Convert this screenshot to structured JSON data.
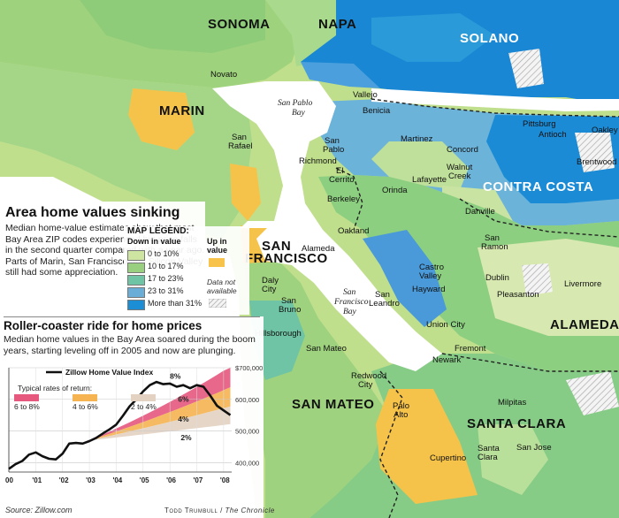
{
  "counties": {
    "sonoma": "SONOMA",
    "napa": "NAPA",
    "solano": "SOLANO",
    "marin": "MARIN",
    "contra_costa": "CONTRA COSTA",
    "san_francisco_line1": "SAN",
    "san_francisco_line2": "FRANCISCO",
    "alameda": "ALAMEDA",
    "san_mateo": "SAN MATEO",
    "santa_clara": "SANTA CLARA"
  },
  "cities": {
    "novato": "Novato",
    "vallejo": "Vallejo",
    "benicia": "Benicia",
    "pittsburg": "Pittsburg",
    "antioch": "Antioch",
    "oakley": "Oakley",
    "san_rafael_1": "San",
    "san_rafael_2": "Rafael",
    "san_pablo_1": "San",
    "san_pablo_2": "Pablo",
    "richmond": "Richmond",
    "martinez": "Martinez",
    "concord": "Concord",
    "walnut_creek_1": "Walnut",
    "walnut_creek_2": "Creek",
    "brentwood": "Brentwood",
    "el_cerrito_1": "El",
    "el_cerrito_2": "Cerrito",
    "orinda": "Orinda",
    "lafayette": "Lafayette",
    "berkeley": "Berkeley",
    "danville": "Danville",
    "oakland": "Oakland",
    "alameda_city": "Alameda",
    "san_ramon_1": "San",
    "san_ramon_2": "Ramon",
    "castro_valley_1": "Castro",
    "castro_valley_2": "Valley",
    "dublin": "Dublin",
    "livermore": "Livermore",
    "pleasanton": "Pleasanton",
    "daly_city_1": "Daly",
    "daly_city_2": "City",
    "san_leandro_1": "San",
    "san_leandro_2": "Leandro",
    "hayward": "Hayward",
    "san_bruno_1": "San",
    "san_bruno_2": "Bruno",
    "union_city": "Union City",
    "hillsborough": "Hillsborough",
    "san_mateo_city": "San Mateo",
    "fremont": "Fremont",
    "newark": "Newark",
    "redwood_city_1": "Redwood",
    "redwood_city_2": "City",
    "milpitas": "Milpitas",
    "palo_alto_1": "Palo",
    "palo_alto_2": "Alto",
    "cupertino": "Cupertino",
    "santa_clara_1": "Santa",
    "santa_clara_2": "Clara",
    "san_jose": "San Jose"
  },
  "water": {
    "san_pablo_bay_1": "San Pablo",
    "san_pablo_bay_2": "Bay",
    "sf_bay_1": "San",
    "sf_bay_2": "Francisco",
    "sf_bay_3": "Bay"
  },
  "article": {
    "title": "Area home values sinking",
    "body": "Median home-value estimates show that most Bay Area ZIP codes experienced big price falls in the second quarter compared with a year ago. Parts of Marin, San Francisco and Silicon Valley still had some appreciation."
  },
  "legend": {
    "title": "MAP LEGEND:",
    "down_label": "Down in value",
    "items": [
      {
        "label": "0 to 10%",
        "color": "#cde5a1"
      },
      {
        "label": "10 to 17%",
        "color": "#99d07f"
      },
      {
        "label": "17 to 23%",
        "color": "#6ec4a4"
      },
      {
        "label": "23 to 31%",
        "color": "#6aaed8"
      },
      {
        "label": "More than 31%",
        "color": "#1c8ed6"
      }
    ],
    "up_label": "Up in value",
    "up_color": "#f7c34a",
    "na_label": "Data not available"
  },
  "roller": {
    "title": "Roller-coaster ride for home prices",
    "body": "Median home values in the Bay Area soared during the boom years, starting leveling off in 2005 and now are plunging."
  },
  "chart_data": {
    "type": "line",
    "title": "Zillow Home Value Index",
    "x": [
      2000.0,
      2000.25,
      2000.5,
      2000.75,
      2001.0,
      2001.25,
      2001.5,
      2001.75,
      2002.0,
      2002.25,
      2002.5,
      2002.75,
      2003.0,
      2003.25,
      2003.5,
      2003.75,
      2004.0,
      2004.25,
      2004.5,
      2004.75,
      2005.0,
      2005.25,
      2005.5,
      2005.75,
      2006.0,
      2006.25,
      2006.5,
      2006.75,
      2007.0,
      2007.25,
      2007.5,
      2007.75,
      2008.0,
      2008.25
    ],
    "series": [
      {
        "name": "Zillow Home Value Index",
        "values": [
          380000,
          395000,
          405000,
          425000,
          432000,
          420000,
          412000,
          410000,
          428000,
          460000,
          462000,
          460000,
          468000,
          478000,
          492000,
          505000,
          520000,
          548000,
          578000,
          600000,
          625000,
          645000,
          655000,
          648000,
          650000,
          640000,
          645000,
          635000,
          645000,
          640000,
          612000,
          580000,
          565000,
          550000
        ]
      }
    ],
    "return_bands_title": "Typical rates of return:",
    "return_bands": [
      {
        "label": "6 to 8%",
        "color": "#e6587e"
      },
      {
        "label": "4 to 6%",
        "color": "#f5b451"
      },
      {
        "label": "2 to 4%",
        "color": "#e3d2c2"
      }
    ],
    "band_labels": [
      "8%",
      "6%",
      "4%",
      "2%"
    ],
    "x_tick_labels": [
      "00",
      "'01",
      "'02",
      "'03",
      "'04",
      "'05",
      "'06",
      "'07",
      "'08"
    ],
    "y_tick_labels": [
      "400,000",
      "500,000",
      "600,000",
      "$700,000"
    ],
    "ylim": [
      370000,
      700000
    ],
    "xlim": [
      2000.0,
      2008.3
    ]
  },
  "credits": {
    "source": "Source: Zillow.com",
    "author": "Todd Trumbull",
    "paper": "The Chronicle"
  }
}
